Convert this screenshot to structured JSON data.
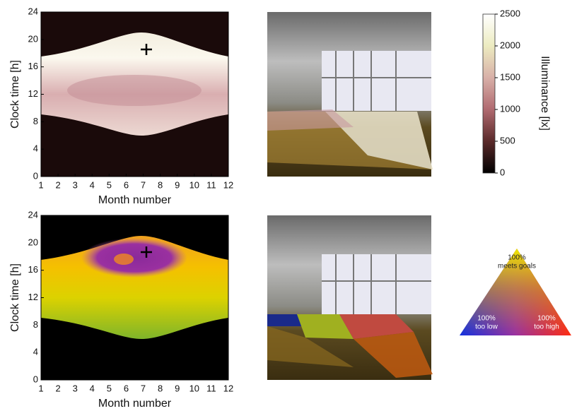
{
  "chart_data": [
    {
      "type": "heatmap",
      "xlabel": "Month number",
      "ylabel": "Clock time [h]",
      "xlim": [
        1,
        12
      ],
      "ylim": [
        0,
        24
      ],
      "xticks": [
        1,
        2,
        3,
        4,
        5,
        6,
        7,
        8,
        9,
        10,
        11,
        12
      ],
      "yticks": [
        0,
        4,
        8,
        12,
        16,
        20,
        24
      ],
      "colorbar": {
        "label": "Illuminance [lx]",
        "lim": [
          0,
          2500
        ],
        "ticks": [
          0,
          500,
          1000,
          1500,
          2000,
          2500
        ]
      }
    },
    {
      "type": "heatmap",
      "xlabel": "Month number",
      "ylabel": "Clock time [h]",
      "xlim": [
        1,
        12
      ],
      "ylim": [
        0,
        24
      ],
      "xticks": [
        1,
        2,
        3,
        4,
        5,
        6,
        7,
        8,
        9,
        10,
        11,
        12
      ],
      "yticks": [
        0,
        4,
        8,
        12,
        16,
        20,
        24
      ],
      "triangle_legend": {
        "top": "100%",
        "top_sub": "meets goals",
        "left": "100%",
        "left_sub": "too low",
        "right": "100%",
        "right_sub": "too high"
      }
    }
  ]
}
